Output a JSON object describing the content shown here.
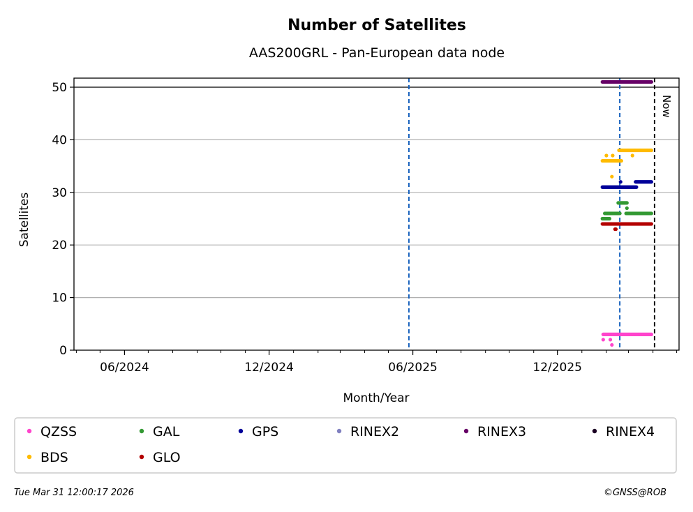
{
  "chart_data": {
    "type": "scatter",
    "title": "Number of Satellites",
    "subtitle": "AAS200GRL - Pan-European data node",
    "xlabel": "Month/Year",
    "ylabel": "Satellites",
    "xlim": [
      "2024-03-29",
      "2026-05-04"
    ],
    "ylim": [
      0,
      52
    ],
    "yticks": [
      0,
      10,
      20,
      30,
      40,
      50
    ],
    "xticks": [
      {
        "date": "2024-06-01",
        "label": "06/2024"
      },
      {
        "date": "2024-12-01",
        "label": "12/2024"
      },
      {
        "date": "2025-06-01",
        "label": "06/2025"
      },
      {
        "date": "2025-12-01",
        "label": "12/2025"
      }
    ],
    "grid": "y",
    "vlines": [
      {
        "date": "2025-05-27",
        "color": "#1560bd",
        "style": "dashed"
      },
      {
        "date": "2026-02-18",
        "color": "#1560bd",
        "style": "dashed"
      }
    ],
    "now": {
      "date": "2026-04-03",
      "label": "Now"
    },
    "series": [
      {
        "name": "QZSS",
        "color": "#ff44cc",
        "segments": [
          {
            "from": "2026-01-28",
            "to": "2026-03-30",
            "value": 3
          }
        ],
        "points": [
          {
            "date": "2026-01-28",
            "value": 2
          },
          {
            "date": "2026-02-06",
            "value": 2
          },
          {
            "date": "2026-02-08",
            "value": 1
          }
        ]
      },
      {
        "name": "GAL",
        "color": "#339933",
        "segments": [
          {
            "from": "2026-01-27",
            "to": "2026-02-05",
            "value": 25
          },
          {
            "from": "2026-01-30",
            "to": "2026-02-18",
            "value": 26
          },
          {
            "from": "2026-02-16",
            "to": "2026-02-27",
            "value": 28
          },
          {
            "from": "2026-02-26",
            "to": "2026-03-30",
            "value": 26
          }
        ],
        "points": [
          {
            "date": "2026-02-27",
            "value": 27
          }
        ]
      },
      {
        "name": "GPS",
        "color": "#000099",
        "segments": [
          {
            "from": "2026-01-27",
            "to": "2026-03-11",
            "value": 31
          },
          {
            "from": "2026-03-10",
            "to": "2026-03-30",
            "value": 32
          }
        ],
        "points": [
          {
            "date": "2026-02-19",
            "value": 32
          }
        ]
      },
      {
        "name": "RINEX2",
        "color": "#8080c0",
        "segments": [],
        "points": []
      },
      {
        "name": "RINEX3",
        "color": "#660066",
        "segments": [
          {
            "from": "2026-01-27",
            "to": "2026-03-30",
            "value": 51
          }
        ],
        "points": []
      },
      {
        "name": "RINEX4",
        "color": "#1a0022",
        "segments": [],
        "points": []
      },
      {
        "name": "BDS",
        "color": "#ffbb00",
        "segments": [
          {
            "from": "2026-01-27",
            "to": "2026-02-20",
            "value": 36
          },
          {
            "from": "2026-02-17",
            "to": "2026-03-30",
            "value": 38
          }
        ],
        "points": [
          {
            "date": "2026-02-01",
            "value": 37
          },
          {
            "date": "2026-02-09",
            "value": 37
          },
          {
            "date": "2026-03-06",
            "value": 37
          },
          {
            "date": "2026-02-08",
            "value": 33
          }
        ]
      },
      {
        "name": "GLO",
        "color": "#b30000",
        "segments": [
          {
            "from": "2026-01-27",
            "to": "2026-03-30",
            "value": 24
          }
        ],
        "points": [
          {
            "date": "2026-02-12",
            "value": 23
          },
          {
            "date": "2026-02-13",
            "value": 23
          }
        ]
      }
    ]
  },
  "footer": {
    "timestamp": "Tue Mar 31 12:00:17 2026",
    "copyright": "©GNSS@ROB"
  }
}
